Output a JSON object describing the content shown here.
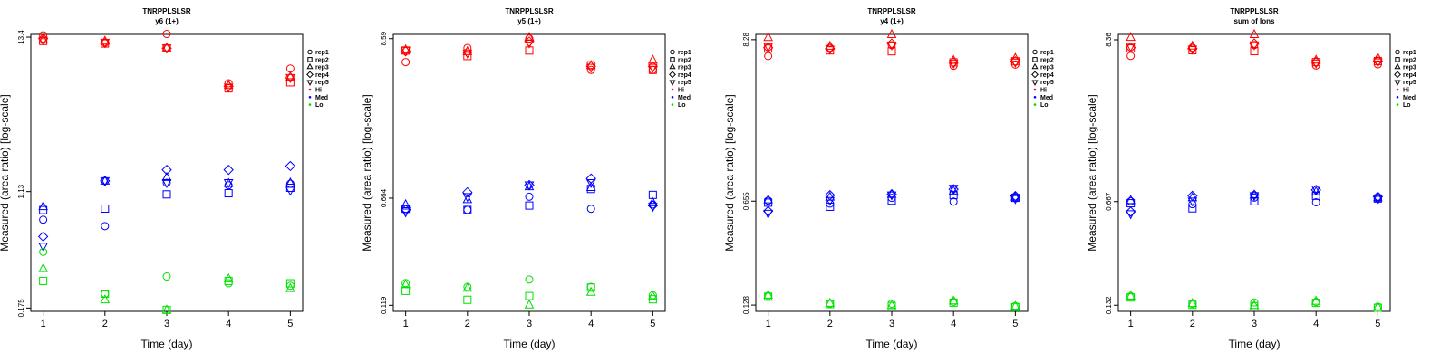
{
  "chart_data": [
    {
      "type": "scatter",
      "title": "TNRPPLSLSR",
      "subtitle": "y6 (1+)",
      "xlabel": "Time (day)",
      "ylabel": "Measured (area ratio) [log-scale]",
      "yscale": "log",
      "x_ticks": [
        1,
        2,
        3,
        4,
        5
      ],
      "y_ticks": [
        0.175,
        1.13,
        13.4
      ],
      "y_tick_labels": [
        "0.175",
        "1.13",
        "13.4"
      ],
      "xlim": [
        0.8,
        5.2
      ],
      "ylim": [
        0.166,
        14.0
      ],
      "legend_position": "top-right",
      "series": [
        {
          "name": "rep1",
          "group": "Hi",
          "x": [
            1,
            2,
            3,
            4,
            5
          ],
          "y": [
            13.8,
            12.3,
            14.1,
            6.4,
            8.1
          ]
        },
        {
          "name": "rep2",
          "group": "Hi",
          "x": [
            1,
            2,
            3,
            4,
            5
          ],
          "y": [
            12.6,
            12.1,
            11.2,
            5.9,
            6.5
          ]
        },
        {
          "name": "rep3",
          "group": "Hi",
          "x": [
            1,
            2,
            3,
            4,
            5
          ],
          "y": [
            12.9,
            12.6,
            11.3,
            6.2,
            7.1
          ]
        },
        {
          "name": "rep4",
          "group": "Hi",
          "x": [
            1,
            2,
            3,
            4,
            5
          ],
          "y": [
            13.1,
            12.2,
            11.2,
            6.1,
            7.0
          ]
        },
        {
          "name": "rep5",
          "group": "Hi",
          "x": [
            1,
            2,
            3,
            4,
            5
          ],
          "y": [
            12.7,
            12.3,
            11.2,
            6.0,
            7.0
          ]
        },
        {
          "name": "rep1",
          "group": "Med",
          "x": [
            1,
            2,
            3,
            4,
            5
          ],
          "y": [
            0.72,
            0.65,
            1.3,
            1.25,
            1.28
          ]
        },
        {
          "name": "rep2",
          "group": "Med",
          "x": [
            1,
            2,
            3,
            4,
            5
          ],
          "y": [
            0.84,
            0.86,
            1.08,
            1.1,
            1.2
          ]
        },
        {
          "name": "rep3",
          "group": "Med",
          "x": [
            1,
            2,
            3,
            4,
            5
          ],
          "y": [
            0.89,
            1.34,
            1.42,
            1.29,
            1.3
          ]
        },
        {
          "name": "rep4",
          "group": "Med",
          "x": [
            1,
            2,
            3,
            4,
            5
          ],
          "y": [
            0.55,
            1.34,
            1.6,
            1.6,
            1.7
          ]
        },
        {
          "name": "rep5",
          "group": "Med",
          "x": [
            1,
            2,
            3,
            4,
            5
          ],
          "y": [
            0.47,
            1.34,
            1.3,
            1.3,
            1.15
          ]
        },
        {
          "name": "rep1",
          "group": "Lo",
          "x": [
            1,
            2,
            3,
            4,
            5
          ],
          "y": [
            0.43,
            0.22,
            0.29,
            0.26,
            0.25
          ]
        },
        {
          "name": "rep2",
          "group": "Lo",
          "x": [
            1,
            2,
            3,
            4,
            5
          ],
          "y": [
            0.27,
            0.22,
            0.17,
            0.27,
            0.26
          ]
        },
        {
          "name": "rep3",
          "group": "Lo",
          "x": [
            1,
            2,
            3,
            4,
            5
          ],
          "y": [
            0.33,
            0.2,
            0.17,
            0.28,
            0.24
          ]
        }
      ]
    },
    {
      "type": "scatter",
      "title": "TNRPPLSLSR",
      "subtitle": "y5 (1+)",
      "xlabel": "Time (day)",
      "ylabel": "Measured (area ratio) [log-scale]",
      "yscale": "log",
      "x_ticks": [
        1,
        2,
        3,
        4,
        5
      ],
      "y_ticks": [
        0.119,
        0.664,
        8.59
      ],
      "y_tick_labels": [
        "0.119",
        "0.664",
        "8.59"
      ],
      "xlim": [
        0.8,
        5.2
      ],
      "ylim": [
        0.108,
        9.2
      ],
      "legend_position": "top-right",
      "series": [
        {
          "name": "rep1",
          "group": "Hi",
          "x": [
            1,
            2,
            3,
            4,
            5
          ],
          "y": [
            5.9,
            7.4,
            8.6,
            5.2,
            5.2
          ]
        },
        {
          "name": "rep2",
          "group": "Hi",
          "x": [
            1,
            2,
            3,
            4,
            5
          ],
          "y": [
            7.1,
            6.5,
            7.1,
            5.6,
            5.2
          ]
        },
        {
          "name": "rep3",
          "group": "Hi",
          "x": [
            1,
            2,
            3,
            4,
            5
          ],
          "y": [
            7.2,
            7.0,
            8.8,
            5.6,
            6.1
          ]
        },
        {
          "name": "rep4",
          "group": "Hi",
          "x": [
            1,
            2,
            3,
            4,
            5
          ],
          "y": [
            7.0,
            6.9,
            8.2,
            5.5,
            5.5
          ]
        },
        {
          "name": "rep5",
          "group": "Hi",
          "x": [
            1,
            2,
            3,
            4,
            5
          ],
          "y": [
            7.1,
            6.8,
            8.0,
            5.4,
            5.4
          ]
        },
        {
          "name": "rep1",
          "group": "Med",
          "x": [
            1,
            2,
            3,
            4,
            5
          ],
          "y": [
            0.56,
            0.55,
            0.68,
            0.56,
            0.6
          ]
        },
        {
          "name": "rep2",
          "group": "Med",
          "x": [
            1,
            2,
            3,
            4,
            5
          ],
          "y": [
            0.56,
            0.55,
            0.59,
            0.77,
            0.7
          ]
        },
        {
          "name": "rep3",
          "group": "Med",
          "x": [
            1,
            2,
            3,
            4,
            5
          ],
          "y": [
            0.6,
            0.65,
            0.8,
            0.79,
            0.62
          ]
        },
        {
          "name": "rep4",
          "group": "Med",
          "x": [
            1,
            2,
            3,
            4,
            5
          ],
          "y": [
            0.55,
            0.73,
            0.82,
            0.91,
            0.59
          ]
        },
        {
          "name": "rep5",
          "group": "Med",
          "x": [
            1,
            2,
            3,
            4,
            5
          ],
          "y": [
            0.53,
            0.68,
            0.82,
            0.85,
            0.58
          ]
        },
        {
          "name": "rep1",
          "group": "Lo",
          "x": [
            1,
            2,
            3,
            4,
            5
          ],
          "y": [
            0.17,
            0.16,
            0.18,
            0.16,
            0.14
          ]
        },
        {
          "name": "rep2",
          "group": "Lo",
          "x": [
            1,
            2,
            3,
            4,
            5
          ],
          "y": [
            0.15,
            0.13,
            0.138,
            0.158,
            0.131
          ]
        },
        {
          "name": "rep3",
          "group": "Lo",
          "x": [
            1,
            2,
            3,
            4,
            5
          ],
          "y": [
            0.166,
            0.157,
            0.12,
            0.147,
            0.138
          ]
        }
      ]
    },
    {
      "type": "scatter",
      "title": "TNRPPLSLSR",
      "subtitle": "y4 (1+)",
      "xlabel": "Time (day)",
      "ylabel": "Measured (area ratio) [log-scale]",
      "yscale": "log",
      "x_ticks": [
        1,
        2,
        3,
        4,
        5
      ],
      "y_ticks": [
        0.128,
        0.655,
        8.28
      ],
      "y_tick_labels": [
        "0.128",
        "0.655",
        "8.28"
      ],
      "xlim": [
        0.8,
        5.2
      ],
      "ylim": [
        0.116,
        9.0
      ],
      "legend_position": "top-right",
      "series": [
        {
          "name": "rep1",
          "group": "Hi",
          "x": [
            1,
            2,
            3,
            4,
            5
          ],
          "y": [
            6.4,
            7.3,
            7.6,
            5.5,
            5.6
          ]
        },
        {
          "name": "rep2",
          "group": "Hi",
          "x": [
            1,
            2,
            3,
            4,
            5
          ],
          "y": [
            7.2,
            7.0,
            6.9,
            5.8,
            5.9
          ]
        },
        {
          "name": "rep3",
          "group": "Hi",
          "x": [
            1,
            2,
            3,
            4,
            5
          ],
          "y": [
            8.6,
            7.5,
            9.0,
            6.0,
            6.2
          ]
        },
        {
          "name": "rep4",
          "group": "Hi",
          "x": [
            1,
            2,
            3,
            4,
            5
          ],
          "y": [
            7.3,
            7.2,
            7.8,
            5.8,
            5.9
          ]
        },
        {
          "name": "rep5",
          "group": "Hi",
          "x": [
            1,
            2,
            3,
            4,
            5
          ],
          "y": [
            7.4,
            7.1,
            7.6,
            5.7,
            5.8
          ]
        },
        {
          "name": "rep1",
          "group": "Med",
          "x": [
            1,
            2,
            3,
            4,
            5
          ],
          "y": [
            0.66,
            0.63,
            0.69,
            0.65,
            0.69
          ]
        },
        {
          "name": "rep2",
          "group": "Med",
          "x": [
            1,
            2,
            3,
            4,
            5
          ],
          "y": [
            0.64,
            0.6,
            0.66,
            0.72,
            0.69
          ]
        },
        {
          "name": "rep3",
          "group": "Med",
          "x": [
            1,
            2,
            3,
            4,
            5
          ],
          "y": [
            0.67,
            0.7,
            0.73,
            0.77,
            0.7
          ]
        },
        {
          "name": "rep4",
          "group": "Med",
          "x": [
            1,
            2,
            3,
            4,
            5
          ],
          "y": [
            0.56,
            0.72,
            0.73,
            0.79,
            0.71
          ]
        },
        {
          "name": "rep5",
          "group": "Med",
          "x": [
            1,
            2,
            3,
            4,
            5
          ],
          "y": [
            0.54,
            0.66,
            0.72,
            0.8,
            0.68
          ]
        },
        {
          "name": "rep1",
          "group": "Lo",
          "x": [
            1,
            2,
            3,
            4,
            5
          ],
          "y": [
            0.148,
            0.131,
            0.131,
            0.135,
            0.126
          ]
        },
        {
          "name": "rep2",
          "group": "Lo",
          "x": [
            1,
            2,
            3,
            4,
            5
          ],
          "y": [
            0.146,
            0.13,
            0.126,
            0.133,
            0.124
          ]
        },
        {
          "name": "rep3",
          "group": "Lo",
          "x": [
            1,
            2,
            3,
            4,
            5
          ],
          "y": [
            0.15,
            0.132,
            0.128,
            0.137,
            0.126
          ]
        }
      ]
    },
    {
      "type": "scatter",
      "title": "TNRPPLSLSR",
      "subtitle": "sum of Ions",
      "xlabel": "Time (day)",
      "ylabel": "Measured (area ratio) [log-scale]",
      "yscale": "log",
      "x_ticks": [
        1,
        2,
        3,
        4,
        5
      ],
      "y_ticks": [
        0.132,
        0.667,
        8.36
      ],
      "y_tick_labels": [
        "0.132",
        "0.667",
        "8.36"
      ],
      "xlim": [
        0.8,
        5.2
      ],
      "ylim": [
        0.12,
        9.1
      ],
      "legend_position": "top-right",
      "series": [
        {
          "name": "rep1",
          "group": "Hi",
          "x": [
            1,
            2,
            3,
            4,
            5
          ],
          "y": [
            6.5,
            7.4,
            7.7,
            5.6,
            5.7
          ]
        },
        {
          "name": "rep2",
          "group": "Hi",
          "x": [
            1,
            2,
            3,
            4,
            5
          ],
          "y": [
            7.3,
            7.1,
            7.0,
            5.9,
            6.0
          ]
        },
        {
          "name": "rep3",
          "group": "Hi",
          "x": [
            1,
            2,
            3,
            4,
            5
          ],
          "y": [
            8.7,
            7.6,
            9.1,
            6.1,
            6.3
          ]
        },
        {
          "name": "rep4",
          "group": "Hi",
          "x": [
            1,
            2,
            3,
            4,
            5
          ],
          "y": [
            7.4,
            7.3,
            7.9,
            5.9,
            6.0
          ]
        },
        {
          "name": "rep5",
          "group": "Hi",
          "x": [
            1,
            2,
            3,
            4,
            5
          ],
          "y": [
            7.5,
            7.2,
            7.7,
            5.8,
            5.9
          ]
        },
        {
          "name": "rep1",
          "group": "Med",
          "x": [
            1,
            2,
            3,
            4,
            5
          ],
          "y": [
            0.67,
            0.64,
            0.71,
            0.66,
            0.7
          ]
        },
        {
          "name": "rep2",
          "group": "Med",
          "x": [
            1,
            2,
            3,
            4,
            5
          ],
          "y": [
            0.65,
            0.6,
            0.67,
            0.73,
            0.7
          ]
        },
        {
          "name": "rep3",
          "group": "Med",
          "x": [
            1,
            2,
            3,
            4,
            5
          ],
          "y": [
            0.68,
            0.71,
            0.74,
            0.78,
            0.71
          ]
        },
        {
          "name": "rep4",
          "group": "Med",
          "x": [
            1,
            2,
            3,
            4,
            5
          ],
          "y": [
            0.57,
            0.73,
            0.74,
            0.8,
            0.72
          ]
        },
        {
          "name": "rep5",
          "group": "Med",
          "x": [
            1,
            2,
            3,
            4,
            5
          ],
          "y": [
            0.55,
            0.67,
            0.73,
            0.81,
            0.69
          ]
        },
        {
          "name": "rep1",
          "group": "Lo",
          "x": [
            1,
            2,
            3,
            4,
            5
          ],
          "y": [
            0.152,
            0.135,
            0.138,
            0.139,
            0.129
          ]
        },
        {
          "name": "rep2",
          "group": "Lo",
          "x": [
            1,
            2,
            3,
            4,
            5
          ],
          "y": [
            0.149,
            0.133,
            0.13,
            0.137,
            0.127
          ]
        },
        {
          "name": "rep3",
          "group": "Lo",
          "x": [
            1,
            2,
            3,
            4,
            5
          ],
          "y": [
            0.153,
            0.136,
            0.132,
            0.141,
            0.129
          ]
        }
      ]
    }
  ],
  "legend": {
    "entries": [
      {
        "label": "rep1",
        "symbol": "circle"
      },
      {
        "label": "rep2",
        "symbol": "square"
      },
      {
        "label": "rep3",
        "symbol": "triangle-up"
      },
      {
        "label": "rep4",
        "symbol": "diamond"
      },
      {
        "label": "rep5",
        "symbol": "triangle-down"
      },
      {
        "label": "Hi",
        "symbol": "dot",
        "color": "#ff0000"
      },
      {
        "label": "Med",
        "symbol": "dot",
        "color": "#0000ff"
      },
      {
        "label": "Lo",
        "symbol": "dot",
        "color": "#00e000"
      }
    ]
  },
  "colors": {
    "Hi": "#ff0000",
    "Med": "#0000ff",
    "Lo": "#00e000"
  }
}
